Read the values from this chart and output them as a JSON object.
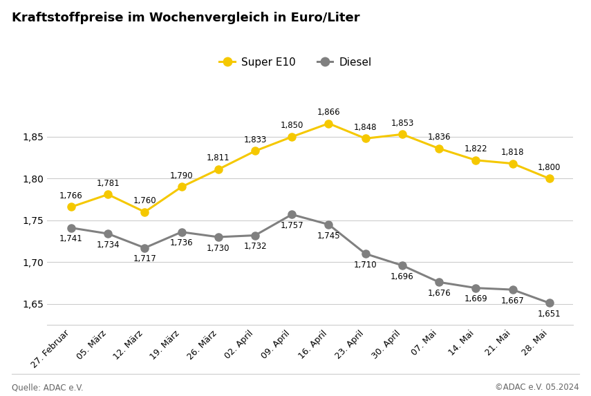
{
  "title": "Kraftstoffpreise im Wochenvergleich in Euro/Liter",
  "categories": [
    "27. Februar",
    "05. März",
    "12. März",
    "19. März",
    "26. März",
    "02. April",
    "09. April",
    "16. April",
    "23. April",
    "30. April",
    "07. Mai",
    "14. Mai",
    "21. Mai",
    "28. Mai"
  ],
  "super_e10": [
    1.766,
    1.781,
    1.76,
    1.79,
    1.811,
    1.833,
    1.85,
    1.866,
    1.848,
    1.853,
    1.836,
    1.822,
    1.818,
    1.8
  ],
  "diesel": [
    1.741,
    1.734,
    1.717,
    1.736,
    1.73,
    1.732,
    1.757,
    1.745,
    1.71,
    1.696,
    1.676,
    1.669,
    1.667,
    1.651
  ],
  "super_e10_color": "#F5C800",
  "diesel_color": "#808080",
  "background_color": "#FFFFFF",
  "title_fontsize": 13,
  "tick_fontsize": 10,
  "annotation_fontsize": 8.5,
  "legend_fontsize": 11,
  "yticks": [
    1.65,
    1.7,
    1.75,
    1.8,
    1.85
  ],
  "ylim": [
    1.625,
    1.9
  ],
  "source_left": "Quelle: ADAC e.V.",
  "source_right": "©ADAC e.V. 05.2024",
  "line_width": 2.2,
  "marker_size": 8
}
